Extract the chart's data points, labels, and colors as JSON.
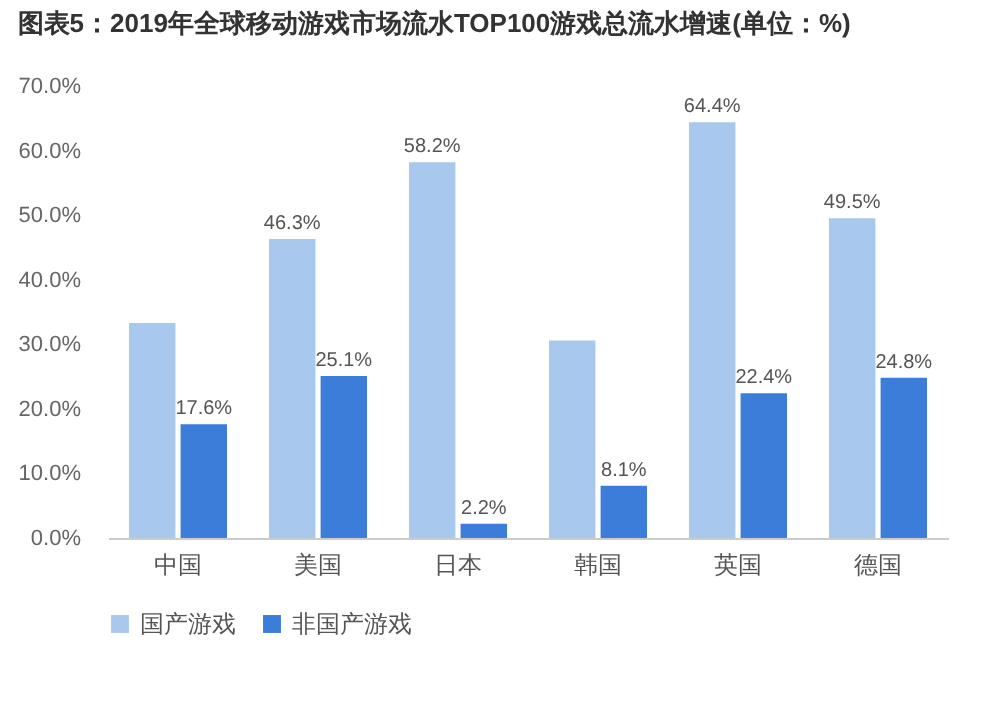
{
  "chart_data": {
    "type": "bar",
    "title": "图表5：2019年全球移动游戏市场流水TOP100游戏总流水增速(单位：%)",
    "categories": [
      "中国",
      "美国",
      "日本",
      "韩国",
      "英国",
      "德国"
    ],
    "series": [
      {
        "name": "国产游戏",
        "color": "#a9c8ee",
        "values": [
          33.3,
          46.3,
          58.2,
          30.6,
          64.4,
          49.5
        ],
        "value_labels": [
          null,
          "46.3%",
          "58.2%",
          null,
          "64.4%",
          "49.5%"
        ]
      },
      {
        "name": "非国产游戏",
        "color": "#3b7dd8",
        "values": [
          17.6,
          25.1,
          2.2,
          8.1,
          22.4,
          24.8
        ],
        "value_labels": [
          "17.6%",
          "25.1%",
          "2.2%",
          "8.1%",
          "22.4%",
          "24.8%"
        ]
      }
    ],
    "ylim": [
      0,
      70
    ],
    "yticks": [
      {
        "value": 0,
        "label": "0.0%"
      },
      {
        "value": 10,
        "label": "10.0%"
      },
      {
        "value": 20,
        "label": "20.0%"
      },
      {
        "value": 30,
        "label": "30.0%"
      },
      {
        "value": 40,
        "label": "40.0%"
      },
      {
        "value": 50,
        "label": "50.0%"
      },
      {
        "value": 60,
        "label": "60.0%"
      },
      {
        "value": 70,
        "label": "70.0%"
      }
    ],
    "grid": false,
    "legend": "bottom"
  }
}
